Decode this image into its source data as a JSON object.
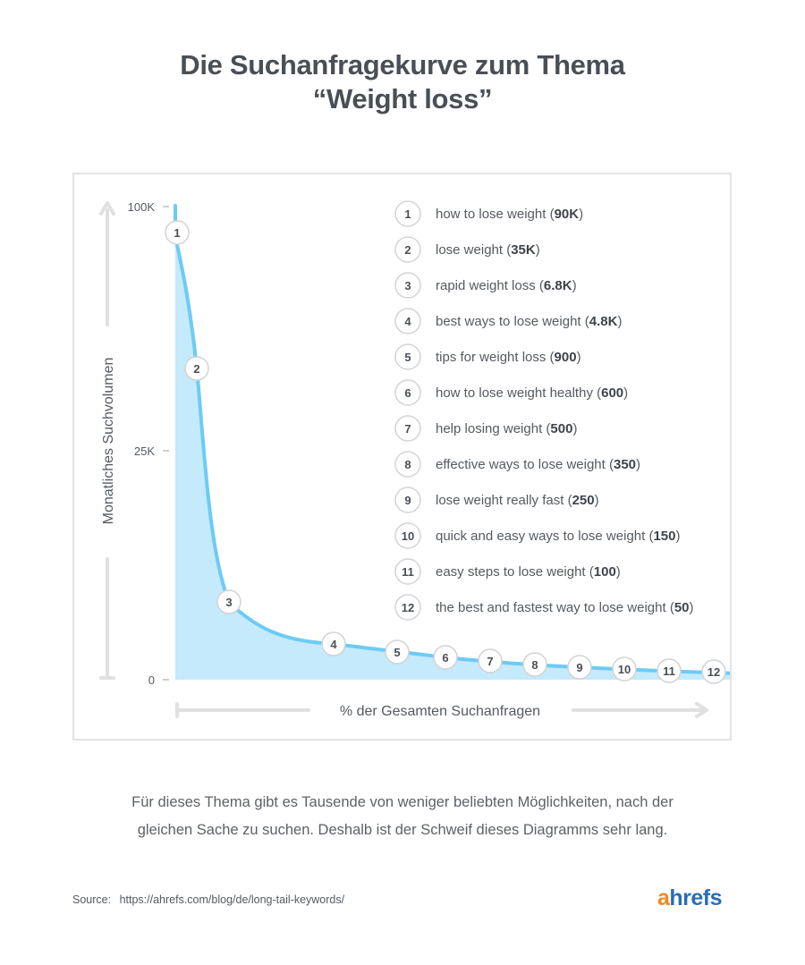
{
  "title": {
    "line1": "Die Suchanfragekurve zum Thema",
    "line2": "“Weight loss”"
  },
  "chart_data": {
    "type": "area",
    "ylabel": "Monatliches Suchvolumen",
    "xlabel": "% der Gesamten Suchanfragen",
    "y_ticks": [
      "100K",
      "25K",
      "0"
    ],
    "colors": {
      "line": "#6dcbf5",
      "fill": "#c4eafb",
      "axis": "#e0e0e0"
    },
    "keywords": [
      {
        "rank": "1",
        "keyword": "how to lose weight",
        "volume_label": "90K",
        "volume": 90000
      },
      {
        "rank": "2",
        "keyword": "lose weight",
        "volume_label": "35K",
        "volume": 35000
      },
      {
        "rank": "3",
        "keyword": "rapid weight loss",
        "volume_label": "6.8K",
        "volume": 6800
      },
      {
        "rank": "4",
        "keyword": "best ways to lose weight",
        "volume_label": "4.8K",
        "volume": 4800
      },
      {
        "rank": "5",
        "keyword": "tips for weight loss",
        "volume_label": "900",
        "volume": 900
      },
      {
        "rank": "6",
        "keyword": "how to lose weight healthy",
        "volume_label": "600",
        "volume": 600
      },
      {
        "rank": "7",
        "keyword": "help losing weight",
        "volume_label": "500",
        "volume": 500
      },
      {
        "rank": "8",
        "keyword": "effective ways to lose weight",
        "volume_label": "350",
        "volume": 350
      },
      {
        "rank": "9",
        "keyword": "lose weight really fast",
        "volume_label": "250",
        "volume": 250
      },
      {
        "rank": "10",
        "keyword": "quick and easy ways to lose weight",
        "volume_label": "150",
        "volume": 150
      },
      {
        "rank": "11",
        "keyword": "easy steps to lose weight",
        "volume_label": "100",
        "volume": 100
      },
      {
        "rank": "12",
        "keyword": "the best and fastest way to lose weight",
        "volume_label": "50",
        "volume": 50
      }
    ]
  },
  "caption": {
    "line1": "Für dieses Thema gibt es Tausende von weniger beliebten Möglichkeiten, nach der",
    "line2": "gleichen Sache zu suchen. Deshalb ist der Schweif dieses Diagramms sehr lang."
  },
  "source": {
    "label": "Source:",
    "url": "https://ahrefs.com/blog/de/long-tail-keywords/"
  },
  "logo": {
    "accent": "a",
    "rest": "hrefs"
  }
}
